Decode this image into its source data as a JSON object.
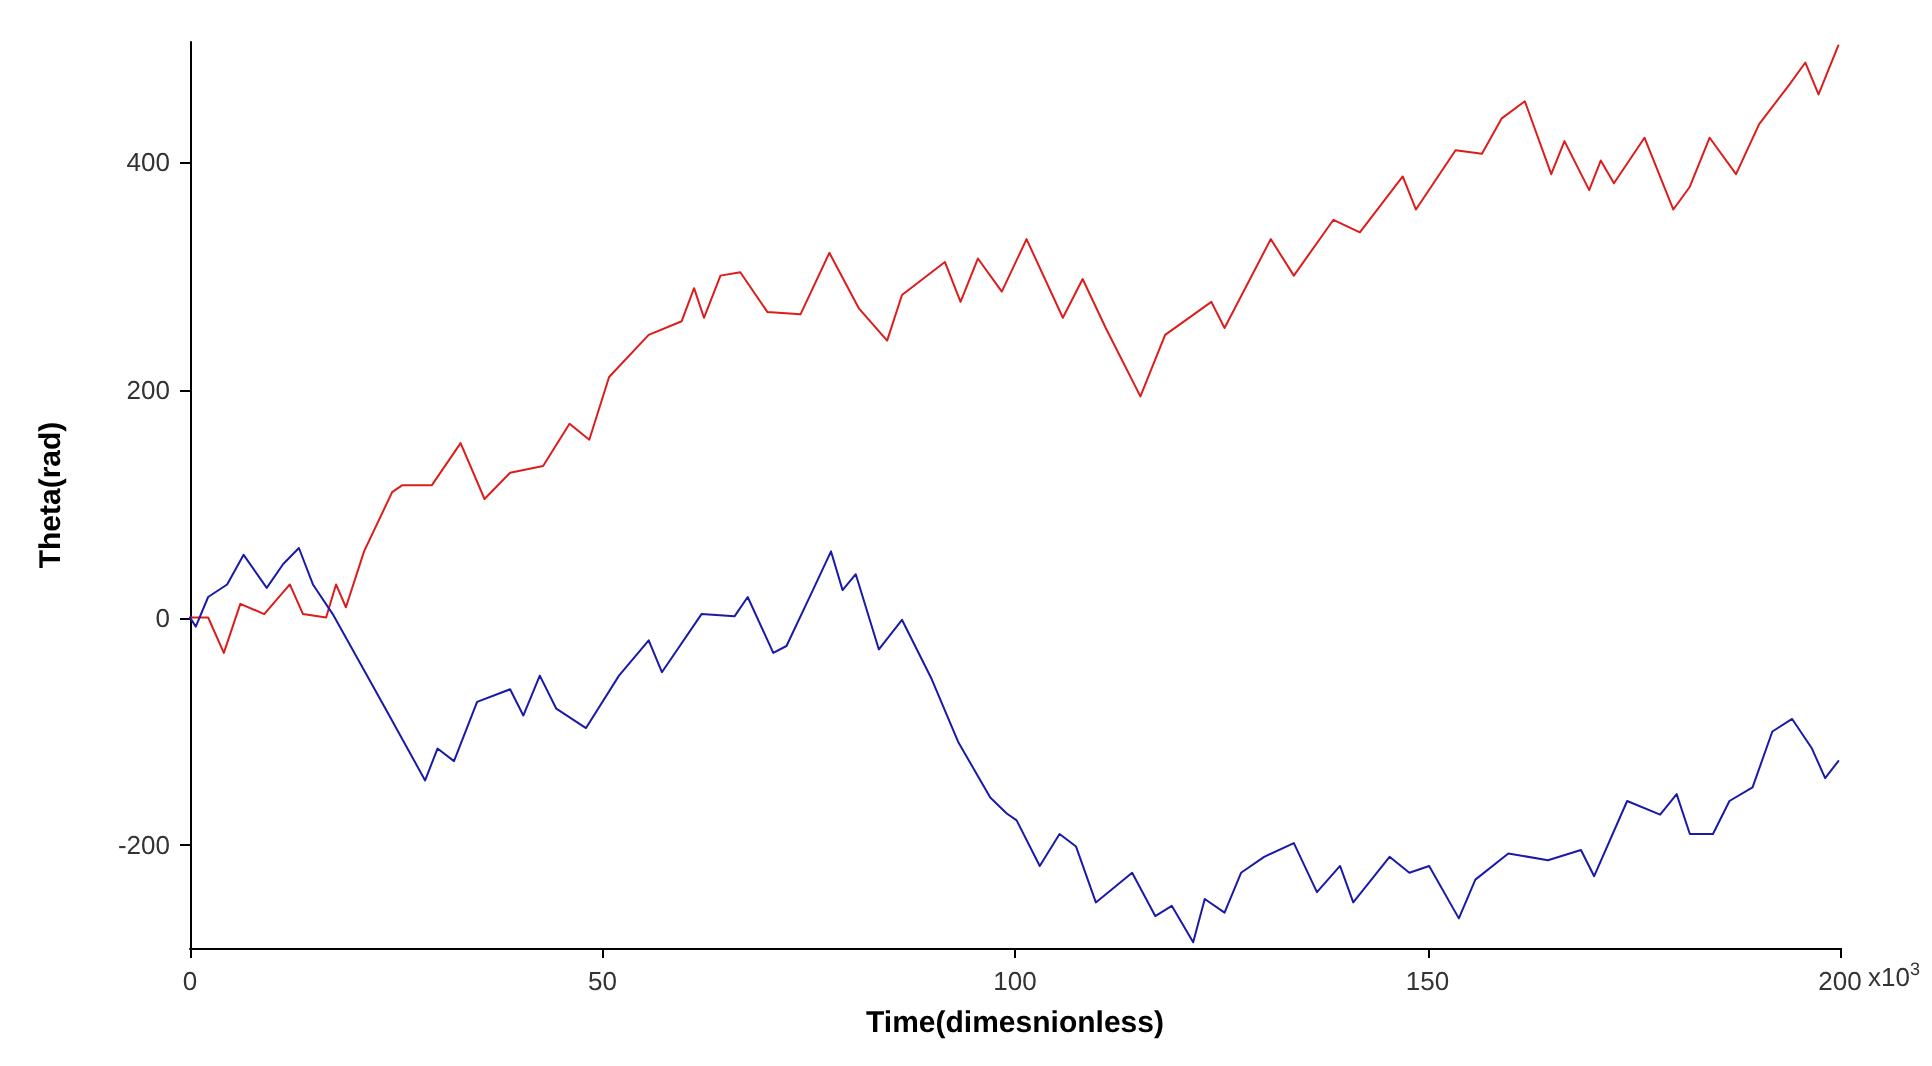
{
  "chart_data": {
    "type": "line",
    "xlabel": "Time(dimesnionless)",
    "ylabel": "Theta(rad)",
    "xlim": [
      0,
      200
    ],
    "xticks": [
      0,
      50,
      100,
      150,
      200
    ],
    "annotations": [
      "x10$^{3}$"
    ],
    "ylim": [
      -290,
      505
    ],
    "yticks": [
      -200,
      0,
      200,
      400
    ],
    "grid": false,
    "marker": "none",
    "line_style": "solid",
    "series": [
      {
        "color": "#dd1c1c",
        "x": [
          0,
          2.2,
          4.1,
          6.1,
          9,
          12.1,
          13.7,
          16.5,
          17.7,
          18.9,
          21.1,
          24.5,
          25.7,
          29.3,
          32.8,
          35.7,
          38.8,
          42.8,
          46,
          48.4,
          50.8,
          55.6,
          59.6,
          61.1,
          62.3,
          64.3,
          66.7,
          70,
          74,
          77.5,
          81.1,
          84.5,
          86.3,
          91.5,
          93.4,
          95.5,
          98.4,
          101.4,
          105.8,
          108.2,
          111,
          115.2,
          118.2,
          123.8,
          125.4,
          131,
          133.8,
          138.6,
          141.8,
          147,
          148.6,
          153.4,
          156.6,
          159,
          161.8,
          165,
          166.6,
          169.6,
          171,
          172.6,
          176.3,
          179.8,
          181.8,
          184.2,
          187.4,
          190.2,
          193.8,
          195.8,
          197.4,
          199.8
        ],
        "values": [
          0,
          0,
          -31,
          12,
          3,
          29,
          3,
          0,
          29,
          9,
          58,
          110,
          116,
          116,
          153,
          104,
          127,
          133,
          170,
          156,
          211,
          248,
          260,
          289,
          263,
          300,
          303,
          268,
          266,
          320,
          271,
          243,
          283,
          312,
          277,
          315,
          286,
          332,
          263,
          297,
          254,
          194,
          248,
          277,
          254,
          332,
          300,
          349,
          338,
          387,
          358,
          410,
          407,
          438,
          453,
          389,
          418,
          375,
          401,
          381,
          421,
          358,
          378,
          421,
          389,
          433,
          467,
          487,
          459,
          502
        ]
      },
      {
        "color": "#1a1aa8",
        "x": [
          0,
          0.7,
          2.2,
          4.5,
          6.5,
          9.3,
          11.3,
          13.2,
          14.9,
          17.3,
          19.7,
          23.7,
          28.5,
          30,
          32,
          34.8,
          38.8,
          40.4,
          42.4,
          44.4,
          48,
          52,
          55.6,
          57.2,
          62,
          66,
          67.6,
          70.7,
          72.3,
          75.5,
          77.7,
          79.1,
          80.7,
          83.5,
          86.3,
          89.9,
          93.1,
          97,
          99,
          100.2,
          103,
          105.4,
          107.4,
          109.8,
          114.2,
          117,
          119,
          121.6,
          123,
          125.4,
          127.4,
          130.2,
          133.8,
          136.6,
          139.4,
          141,
          145.4,
          147.8,
          150.2,
          153.8,
          155.8,
          159.8,
          164.6,
          168.6,
          170.2,
          174.2,
          178.2,
          180.2,
          181.8,
          184.6,
          186.6,
          189.4,
          191.8,
          194.2,
          196.6,
          198.2,
          199.8
        ],
        "values": [
          0,
          -8,
          18,
          29,
          55,
          26,
          47,
          61,
          29,
          3,
          -28,
          -80,
          -143,
          -115,
          -126,
          -74,
          -63,
          -86,
          -51,
          -80,
          -97,
          -51,
          -20,
          -48,
          3,
          1,
          18,
          -31,
          -25,
          24,
          58,
          24,
          38,
          -28,
          -2,
          -54,
          -109,
          -158,
          -172,
          -178,
          -218,
          -190,
          -201,
          -250,
          -224,
          -262,
          -253,
          -285,
          -247,
          -259,
          -224,
          -210,
          -198,
          -241,
          -218,
          -250,
          -210,
          -224,
          -218,
          -264,
          -230,
          -207,
          -213,
          -204,
          -227,
          -161,
          -173,
          -155,
          -190,
          -190,
          -161,
          -149,
          -100,
          -89,
          -115,
          -141,
          -126
        ]
      }
    ]
  }
}
